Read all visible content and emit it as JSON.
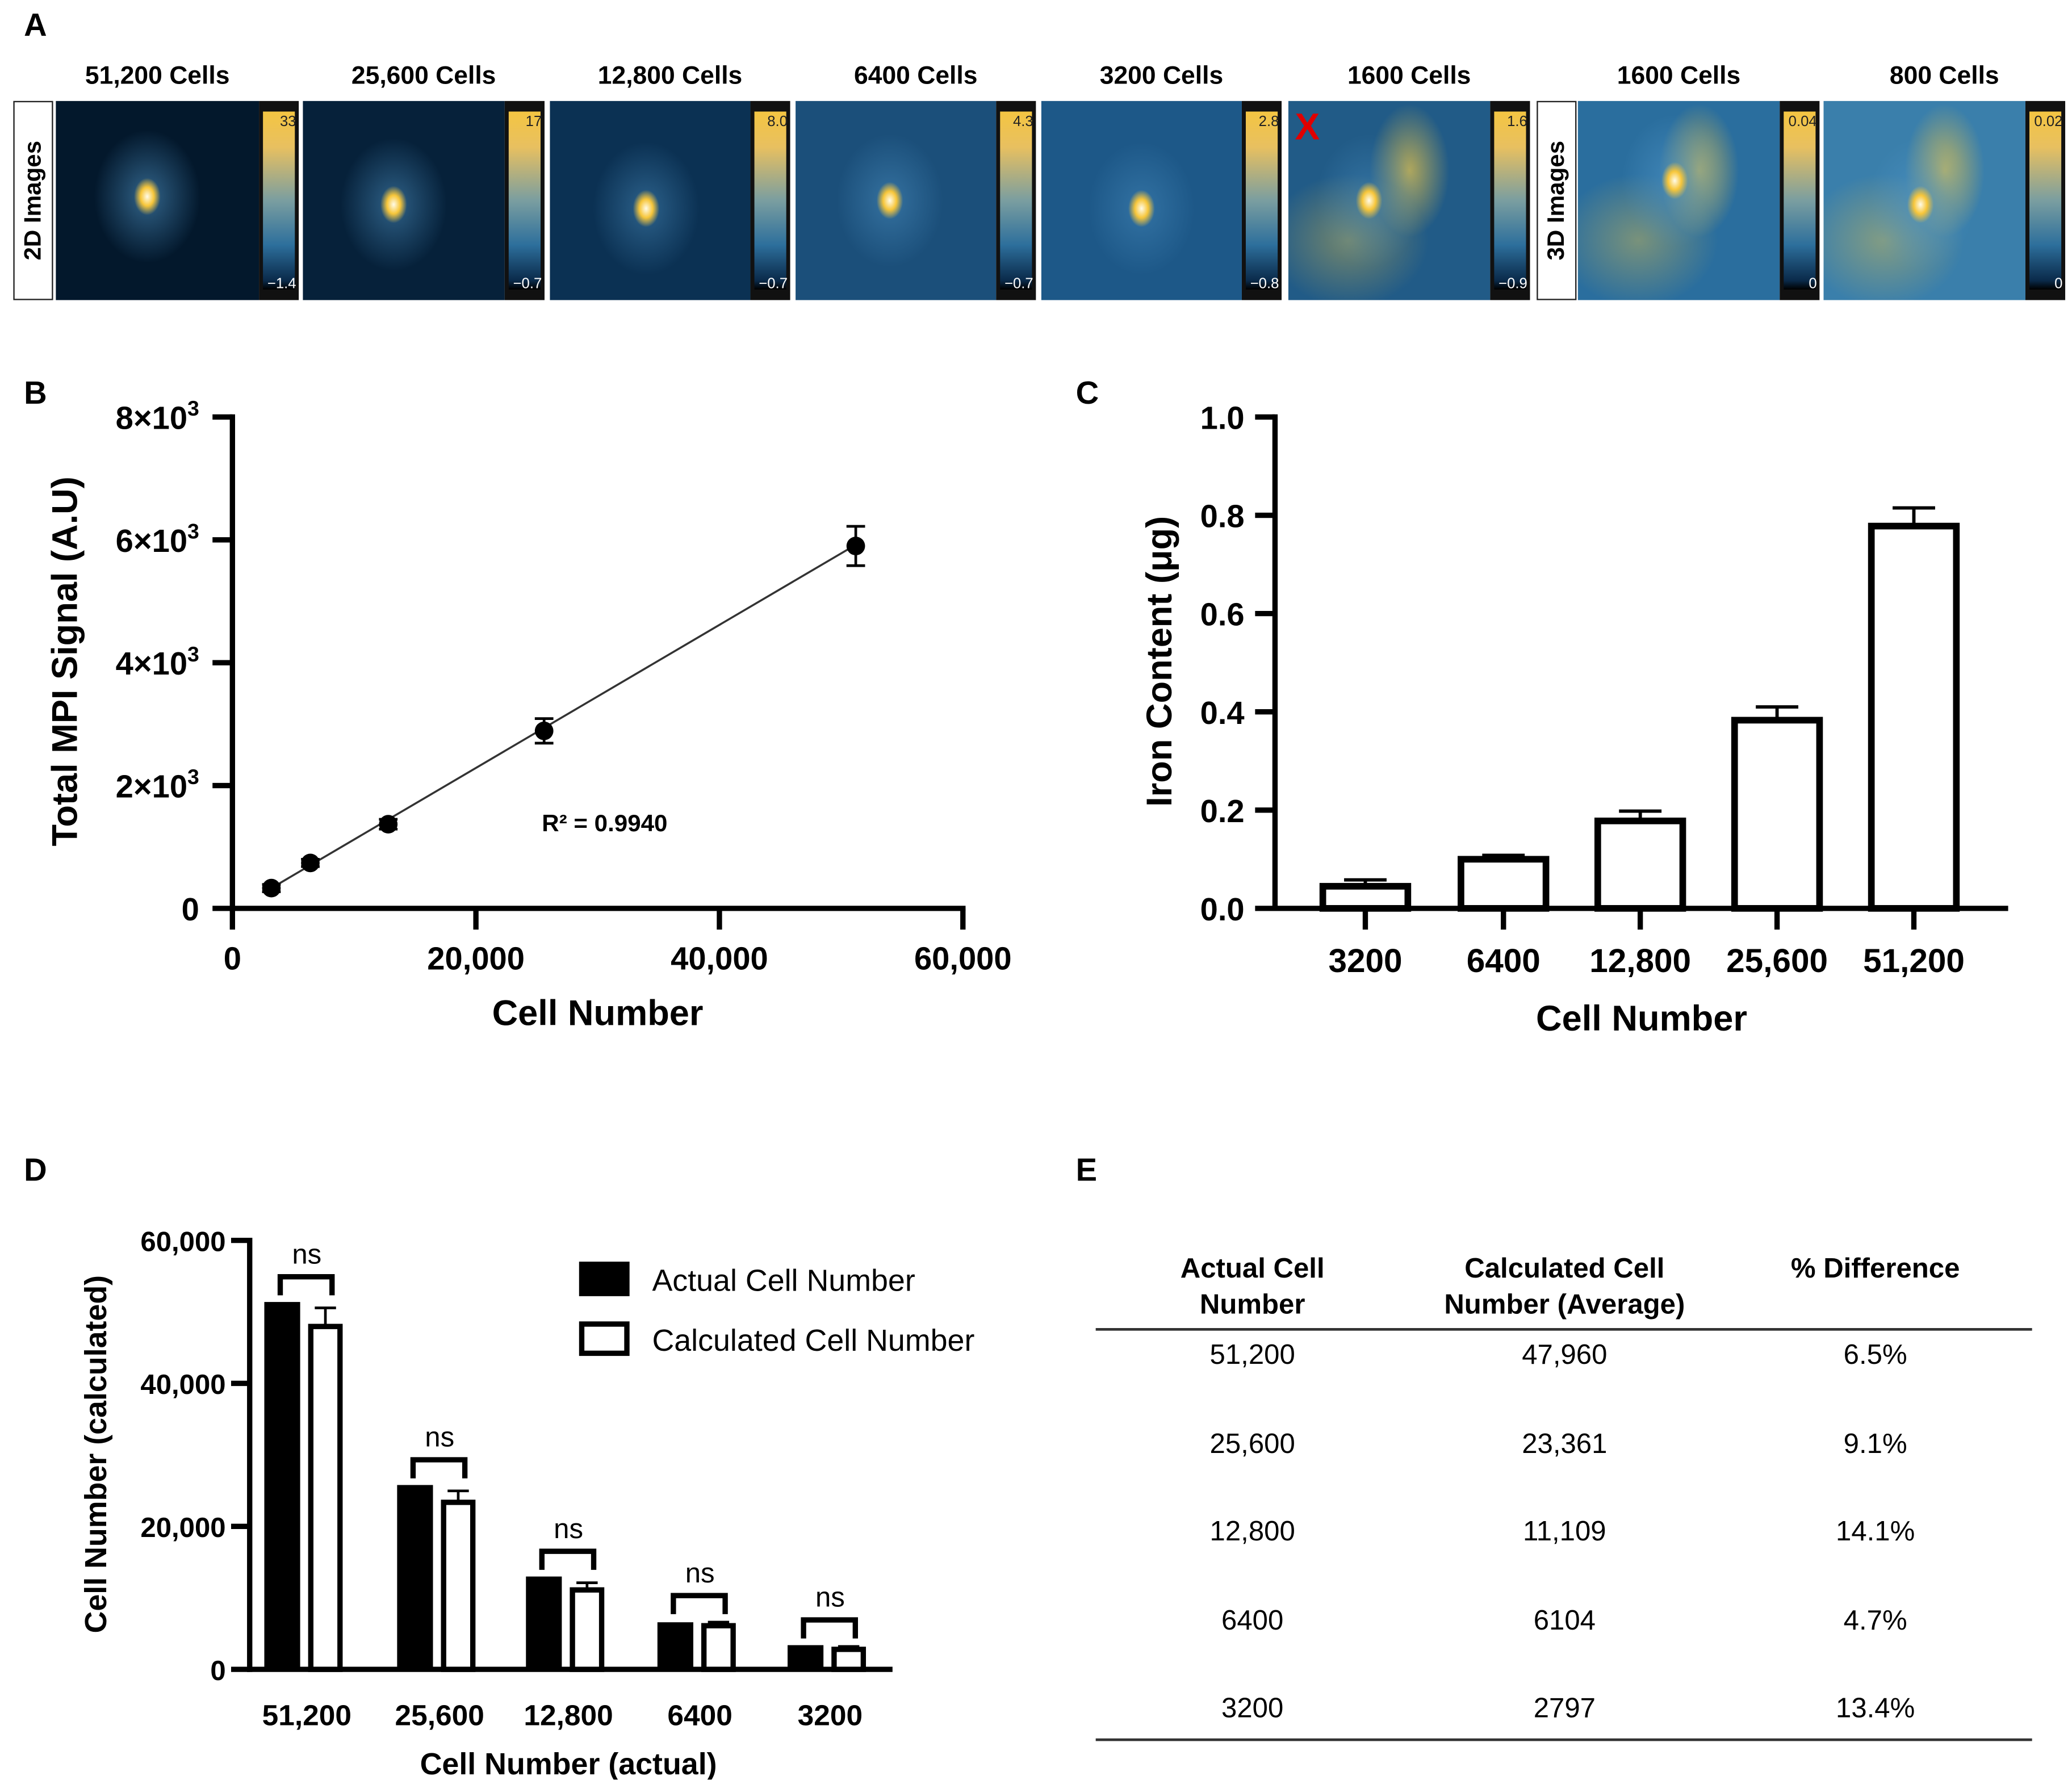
{
  "panel_labels": {
    "a": "A",
    "b": "B",
    "c": "C",
    "d": "D",
    "e": "E"
  },
  "panel_a": {
    "row_label_2d": "2D Images",
    "row_label_3d": "3D Images",
    "marker": "X",
    "marker_color": "#e00000",
    "tiles": [
      {
        "title": "51,200 Cells",
        "max": "33",
        "min": "−1.4",
        "bg": "#03182c",
        "spot": 1.0
      },
      {
        "title": "25,600 Cells",
        "max": "17",
        "min": "−0.7",
        "bg": "#06213a",
        "spot": 0.9
      },
      {
        "title": "12,800 Cells",
        "max": "8.0",
        "min": "−0.7",
        "bg": "#0b3153",
        "spot": 0.8
      },
      {
        "title": "6400 Cells",
        "max": "4.3",
        "min": "−0.7",
        "bg": "#1b4f7a",
        "spot": 0.8
      },
      {
        "title": "3200 Cells",
        "max": "2.8",
        "min": "−0.8",
        "bg": "#1d5888",
        "spot": 0.7
      },
      {
        "title": "1600 Cells",
        "max": "1.6",
        "min": "−0.9",
        "bg": "#215b87",
        "spot": 0.7
      },
      {
        "title": "1600 Cells",
        "max": "0.04",
        "min": "0",
        "bg": "#2a6e9e",
        "spot": 1.0
      },
      {
        "title": "800 Cells",
        "max": "0.02",
        "min": "0",
        "bg": "#3a7fab",
        "spot": 1.0
      }
    ]
  },
  "chart_data": [
    {
      "id": "B",
      "type": "scatter",
      "xlabel": "Cell Number",
      "ylabel": "Total MPI Signal (A.U)",
      "xlim": [
        0,
        60000
      ],
      "ylim": [
        0,
        8000
      ],
      "xticks": [
        {
          "v": 0,
          "label": "0"
        },
        {
          "v": 20000,
          "label": "20,000"
        },
        {
          "v": 40000,
          "label": "40,000"
        },
        {
          "v": 60000,
          "label": "60,000"
        }
      ],
      "yticks": [
        {
          "v": 0,
          "label": "0",
          "exp": ""
        },
        {
          "v": 2000,
          "label": "2×10",
          "exp": "3"
        },
        {
          "v": 4000,
          "label": "4×10",
          "exp": "3"
        },
        {
          "v": 6000,
          "label": "6×10",
          "exp": "3"
        },
        {
          "v": 8000,
          "label": "8×10",
          "exp": "3"
        }
      ],
      "points": [
        {
          "x": 3200,
          "y": 330,
          "err": 60
        },
        {
          "x": 6400,
          "y": 740,
          "err": 60
        },
        {
          "x": 12800,
          "y": 1370,
          "err": 80
        },
        {
          "x": 25600,
          "y": 2890,
          "err": 200
        },
        {
          "x": 51200,
          "y": 5900,
          "err": 320
        }
      ],
      "fit": {
        "x0": 3200,
        "y0": 330,
        "x1": 51200,
        "y1": 5920
      },
      "annotation": "R² = 0.9940"
    },
    {
      "id": "C",
      "type": "bar",
      "xlabel": "Cell Number",
      "ylabel": "Iron Content (μg)",
      "ylim": [
        0,
        1.0
      ],
      "yticks": [
        "0.0",
        "0.2",
        "0.4",
        "0.6",
        "0.8",
        "1.0"
      ],
      "categories": [
        "3200",
        "6400",
        "12,800",
        "25,600",
        "51,200"
      ],
      "values": [
        0.045,
        0.1,
        0.178,
        0.383,
        0.778
      ],
      "errors": [
        0.013,
        0.008,
        0.02,
        0.027,
        0.037
      ]
    },
    {
      "id": "D",
      "type": "bar",
      "xlabel": "Cell Number (actual)",
      "ylabel": "Cell Number (calculated)",
      "ylim": [
        0,
        60000
      ],
      "yticks": [
        {
          "v": 0,
          "label": "0"
        },
        {
          "v": 20000,
          "label": "20,000"
        },
        {
          "v": 40000,
          "label": "40,000"
        },
        {
          "v": 60000,
          "label": "60,000"
        }
      ],
      "categories": [
        "51,200",
        "25,600",
        "12,800",
        "6400",
        "3200"
      ],
      "series": [
        {
          "name": "Actual Cell Number",
          "values": [
            51200,
            25600,
            12800,
            6400,
            3200
          ],
          "errors": [
            0,
            0,
            0,
            0,
            0
          ],
          "fill": "#000000"
        },
        {
          "name": "Calculated Cell Number",
          "values": [
            47960,
            23361,
            11109,
            6104,
            2797
          ],
          "errors": [
            2600,
            1600,
            1000,
            500,
            400
          ],
          "fill": "#ffffff"
        }
      ],
      "significance": [
        "ns",
        "ns",
        "ns",
        "ns",
        "ns"
      ]
    }
  ],
  "panel_e": {
    "headers": [
      [
        "Actual Cell",
        "Number"
      ],
      [
        "Calculated Cell",
        "Number (Average)"
      ],
      [
        "% Difference",
        ""
      ]
    ],
    "rows": [
      [
        "51,200",
        "47,960",
        "6.5%"
      ],
      [
        "25,600",
        "23,361",
        "9.1%"
      ],
      [
        "12,800",
        "11,109",
        "14.1%"
      ],
      [
        "6400",
        "6104",
        "4.7%"
      ],
      [
        "3200",
        "2797",
        "13.4%"
      ]
    ]
  }
}
